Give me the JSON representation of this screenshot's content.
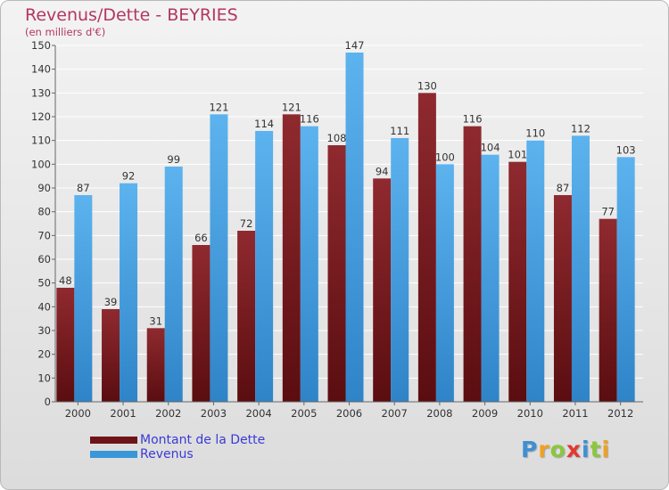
{
  "header": {
    "title": "Revenus/Dette - BEYRIES",
    "subtitle": "(en milliers d'€)"
  },
  "chart_data": {
    "type": "bar",
    "categories": [
      "2000",
      "2001",
      "2002",
      "2003",
      "2004",
      "2005",
      "2006",
      "2007",
      "2008",
      "2009",
      "2010",
      "2011",
      "2012"
    ],
    "series": [
      {
        "name": "Montant de la Dette",
        "values": [
          48,
          39,
          31,
          66,
          72,
          121,
          108,
          94,
          130,
          116,
          101,
          87,
          77
        ]
      },
      {
        "name": "Revenus",
        "values": [
          87,
          92,
          99,
          121,
          114,
          116,
          147,
          111,
          100,
          104,
          110,
          112,
          103
        ]
      }
    ],
    "title": "Revenus/Dette - BEYRIES",
    "ylabel": "(en milliers d'€)",
    "ylim": [
      0,
      150
    ],
    "yticks": [
      0,
      10,
      20,
      30,
      40,
      50,
      60,
      70,
      80,
      90,
      100,
      110,
      120,
      130,
      140,
      150
    ],
    "grid": true,
    "legend_position": "bottom-left"
  },
  "legend": [
    {
      "label": "Montant de la Dette",
      "color": "#6e1418"
    },
    {
      "label": "Revenus",
      "color": "#3a96d8"
    }
  ],
  "colors": {
    "debt_top": "#8f2a2f",
    "debt_bottom": "#5a0d10",
    "revenue_top": "#5cb3ee",
    "revenue_bottom": "#2f84c8",
    "title": "#b4365e"
  },
  "logo": {
    "text": "Proxiti",
    "letters": [
      {
        "ch": "P",
        "color": "#3e8fd6"
      },
      {
        "ch": "r",
        "color": "#f0a023"
      },
      {
        "ch": "o",
        "color": "#8cc63f"
      },
      {
        "ch": "x",
        "color": "#e2392f"
      },
      {
        "ch": "i",
        "color": "#3e8fd6"
      },
      {
        "ch": "t",
        "color": "#8cc63f"
      },
      {
        "ch": "i",
        "color": "#f0a023"
      }
    ]
  }
}
